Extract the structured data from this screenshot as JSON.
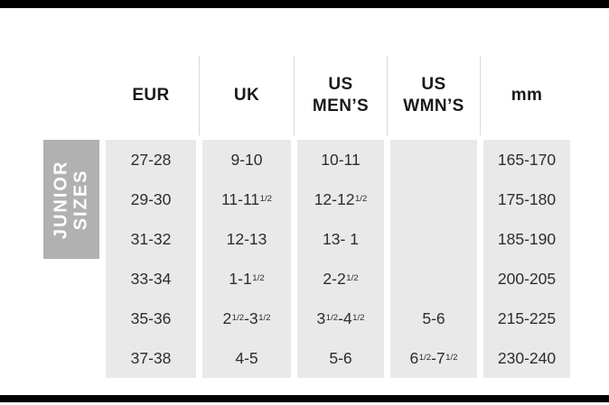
{
  "chart_data": {
    "type": "table",
    "row_group_label": "JUNIOR SIZES",
    "row_group_label_display": "JUNIOR\nSIZES",
    "columns": [
      "EUR",
      "UK",
      "US MEN’S",
      "US WMN’S",
      "mm"
    ],
    "column_labels_display": [
      "EUR",
      "UK",
      "US\nMEN’S",
      "US\nWMN’S",
      "mm"
    ],
    "rows": [
      [
        "27-28",
        "9-10",
        "10-11",
        "",
        "165-170"
      ],
      [
        "29-30",
        "11-11½",
        "12-12½",
        "",
        "175-180"
      ],
      [
        "31-32",
        "12-13",
        "13- 1",
        "",
        "185-190"
      ],
      [
        "33-34",
        "1-1½",
        "2-2½",
        "",
        "200-205"
      ],
      [
        "35-36",
        "2½-3½",
        "3½-4½",
        "5-6",
        "215-225"
      ],
      [
        "37-38",
        "4-5",
        "5-6",
        "6½-7½",
        "230-240"
      ]
    ]
  },
  "colors": {
    "band_background": "#e9e9e9",
    "group_label_background": "#b1b1b1",
    "group_label_text": "#ffffff",
    "header_text": "#1a1a1a",
    "cell_text": "#2d2d2d",
    "divider": "#000000"
  }
}
